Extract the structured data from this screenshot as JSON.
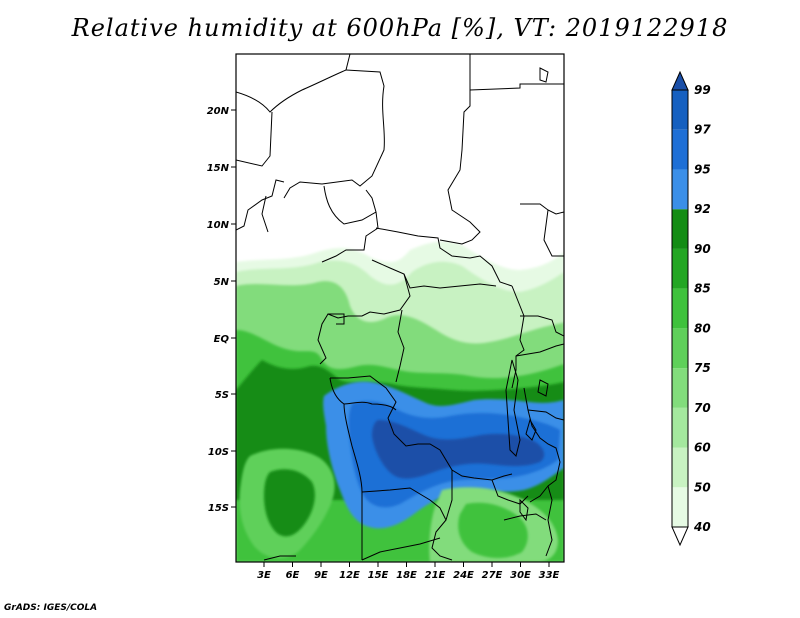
{
  "title": "Relative humidity at 600hPa [%], VT: 2019122918",
  "footer": "GrADS: IGES/COLA",
  "map": {
    "lat_labels": [
      "20N",
      "15N",
      "10N",
      "5N",
      "EQ",
      "5S",
      "10S",
      "15S"
    ],
    "lon_labels": [
      "3E",
      "6E",
      "9E",
      "12E",
      "15E",
      "18E",
      "21E",
      "24E",
      "27E",
      "30E",
      "33E"
    ]
  },
  "colorbar": {
    "levels": [
      "40",
      "50",
      "60",
      "70",
      "75",
      "80",
      "85",
      "90",
      "92",
      "95",
      "97",
      "99"
    ],
    "colors": [
      "#ffffff",
      "#e6fae4",
      "#c8f2c2",
      "#a4e89e",
      "#82dc7c",
      "#5fd05a",
      "#3fc23c",
      "#23a623",
      "#138c14",
      "#3b8fe8",
      "#1e6fd6",
      "#1660c0",
      "#1a4fa8"
    ]
  }
}
